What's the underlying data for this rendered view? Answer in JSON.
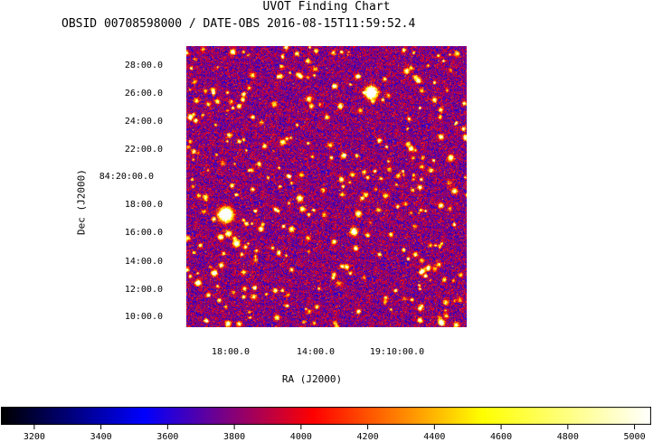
{
  "title": "UVOT Finding Chart",
  "subtitle": "OBSID 00708598000 / DATE-OBS 2016-08-15T11:59:52.4",
  "chart_data": {
    "type": "heatmap",
    "title": "UVOT Finding Chart",
    "subtitle": "OBSID 00708598000 / DATE-OBS 2016-08-15T11:59:52.4",
    "xlabel": "RA (J2000)",
    "ylabel": "Dec (J2000)",
    "x_ticks": [
      "18:00.0",
      "14:00.0",
      "19:10:00.0"
    ],
    "y_ticks": [
      "28:00.0",
      "26:00.0",
      "24:00.0",
      "22:00.0",
      "84:20:00.0",
      "18:00.0",
      "16:00.0",
      "14:00.0",
      "12:00.0",
      "10:00.0"
    ],
    "colorbar": {
      "min": 3100,
      "max": 5050,
      "ticks": [
        3200,
        3400,
        3600,
        3800,
        4000,
        4200,
        4400,
        4600,
        4800,
        5000
      ],
      "colors": [
        "#000000",
        "#0000ff",
        "#ff0000",
        "#ffff00",
        "#ffffff"
      ]
    }
  }
}
